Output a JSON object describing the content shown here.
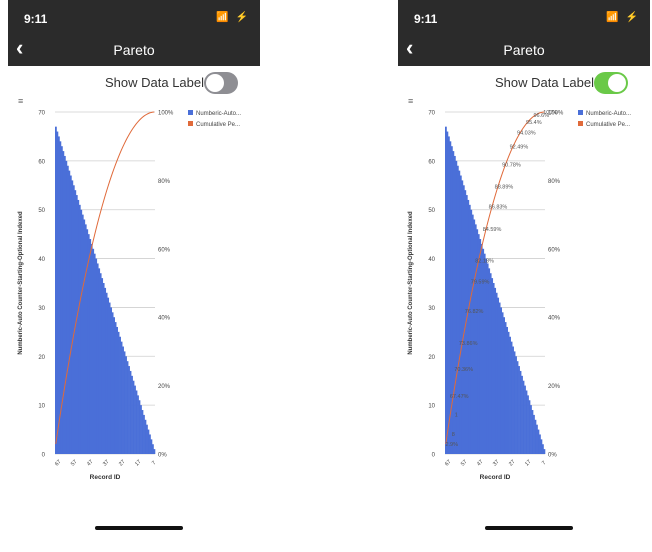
{
  "screens": [
    {
      "status": {
        "time": "9:11",
        "icons": "📶 ⚡"
      },
      "nav": {
        "back": "‹",
        "title": "Pareto"
      },
      "toggle": {
        "label": "Show Data Labels",
        "on": false,
        "color": "#8e8e93"
      },
      "menu_icon": "≡"
    },
    {
      "status": {
        "time": "9:11",
        "icons": "📶 ⚡"
      },
      "nav": {
        "back": "‹",
        "title": "Pareto"
      },
      "toggle": {
        "label": "Show Data Labels",
        "on": true,
        "color": "#6ac948"
      },
      "menu_icon": "≡"
    }
  ],
  "chart_data": {
    "type": "bar",
    "title": "",
    "xlabel": "Record ID",
    "ylabel": "Numberic-Auto Counter-Starting-Optional Indexed",
    "ylim": [
      0,
      70
    ],
    "yticks": [
      "0",
      "10",
      "20",
      "30",
      "40",
      "50",
      "60",
      "70"
    ],
    "y2lim": [
      0,
      100
    ],
    "y2ticks": [
      "0%",
      "20%",
      "40%",
      "60%",
      "80%",
      "100%"
    ],
    "xticks": [
      "67",
      "57",
      "47",
      "37",
      "27",
      "17",
      "7"
    ],
    "legend_position": "top-right",
    "series": [
      {
        "name": "Numberic-Auto...",
        "color": "#4a6fd8",
        "start": 67,
        "end": 1
      },
      {
        "name": "Cumulative Pe...",
        "color": "#e06a3a"
      }
    ],
    "data_labels": [
      "2.9%",
      "8",
      "1",
      "67.47%",
      "70.36%",
      "73.86%",
      "76.82%",
      "79.59%",
      "82.18%",
      "84.59%",
      "86.83%",
      "88.89%",
      "90.78%",
      "92.49%",
      "94.03%",
      "95.4%",
      "96.6%",
      "100%"
    ],
    "grid": true
  }
}
